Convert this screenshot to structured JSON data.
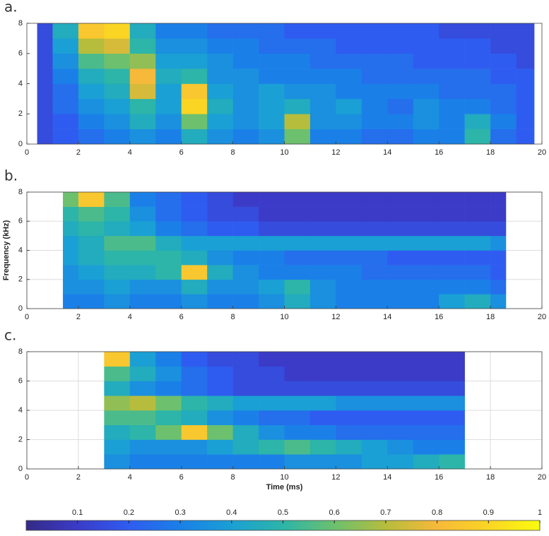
{
  "chart_data": [
    {
      "type": "heatmap",
      "label": "a.",
      "xlim": [
        0,
        20
      ],
      "ylim": [
        0,
        8
      ],
      "xticks": [
        0,
        2,
        4,
        6,
        8,
        10,
        12,
        14,
        16,
        18,
        20
      ],
      "yticks": [
        0,
        2,
        4,
        6,
        8
      ],
      "grid": false,
      "xbins": [
        0.4,
        1,
        2,
        3,
        4,
        5,
        6,
        7,
        8,
        9,
        10,
        11,
        12,
        13,
        14,
        15,
        16,
        17,
        18,
        19,
        19.7
      ],
      "ybins": [
        0,
        1,
        2,
        3,
        4,
        5,
        6,
        7,
        8
      ],
      "values": [
        [
          0.15,
          0.2,
          0.25,
          0.3,
          0.35,
          0.3,
          0.45,
          0.35,
          0.3,
          0.35,
          0.6,
          0.3,
          0.3,
          0.25,
          0.25,
          0.3,
          0.3,
          0.5,
          0.25,
          0.2
        ],
        [
          0.15,
          0.2,
          0.3,
          0.35,
          0.45,
          0.35,
          0.6,
          0.4,
          0.35,
          0.4,
          0.7,
          0.35,
          0.35,
          0.3,
          0.3,
          0.35,
          0.3,
          0.45,
          0.3,
          0.2
        ],
        [
          0.15,
          0.25,
          0.35,
          0.4,
          0.5,
          0.4,
          0.9,
          0.45,
          0.35,
          0.4,
          0.45,
          0.35,
          0.4,
          0.3,
          0.25,
          0.35,
          0.3,
          0.3,
          0.25,
          0.2
        ],
        [
          0.15,
          0.25,
          0.4,
          0.45,
          0.75,
          0.4,
          0.85,
          0.4,
          0.35,
          0.4,
          0.35,
          0.35,
          0.3,
          0.3,
          0.3,
          0.3,
          0.25,
          0.25,
          0.25,
          0.2
        ],
        [
          0.15,
          0.3,
          0.45,
          0.5,
          0.8,
          0.45,
          0.5,
          0.35,
          0.35,
          0.3,
          0.3,
          0.3,
          0.3,
          0.25,
          0.25,
          0.25,
          0.25,
          0.25,
          0.2,
          0.2
        ],
        [
          0.15,
          0.35,
          0.55,
          0.6,
          0.65,
          0.4,
          0.4,
          0.35,
          0.3,
          0.3,
          0.3,
          0.25,
          0.25,
          0.25,
          0.25,
          0.2,
          0.2,
          0.2,
          0.2,
          0.15
        ],
        [
          0.15,
          0.4,
          0.7,
          0.75,
          0.5,
          0.35,
          0.35,
          0.3,
          0.3,
          0.25,
          0.25,
          0.25,
          0.2,
          0.2,
          0.2,
          0.2,
          0.2,
          0.2,
          0.15,
          0.15
        ],
        [
          0.15,
          0.45,
          0.85,
          0.9,
          0.45,
          0.3,
          0.3,
          0.25,
          0.25,
          0.25,
          0.2,
          0.2,
          0.2,
          0.2,
          0.2,
          0.2,
          0.15,
          0.15,
          0.15,
          0.15
        ]
      ]
    },
    {
      "type": "heatmap",
      "label": "b.",
      "ylabel": "Frequency (kHz)",
      "xlim": [
        0,
        20
      ],
      "ylim": [
        0,
        8
      ],
      "xticks": [
        0,
        2,
        4,
        6,
        8,
        10,
        12,
        14,
        16,
        18,
        20
      ],
      "yticks": [
        0,
        2,
        4,
        6,
        8
      ],
      "grid": true,
      "xbins": [
        1.4,
        2,
        3,
        4,
        5,
        6,
        7,
        8,
        9,
        10,
        11,
        12,
        13,
        14,
        15,
        16,
        17,
        18,
        18.6
      ],
      "ybins": [
        0,
        1,
        2,
        3,
        4,
        5,
        6,
        7,
        8
      ],
      "values": [
        [
          0.3,
          0.3,
          0.35,
          0.3,
          0.3,
          0.35,
          0.3,
          0.3,
          0.35,
          0.45,
          0.35,
          0.3,
          0.3,
          0.3,
          0.3,
          0.4,
          0.45,
          0.35
        ],
        [
          0.35,
          0.35,
          0.4,
          0.35,
          0.35,
          0.45,
          0.35,
          0.35,
          0.4,
          0.5,
          0.35,
          0.3,
          0.3,
          0.3,
          0.3,
          0.3,
          0.3,
          0.25
        ],
        [
          0.35,
          0.4,
          0.45,
          0.45,
          0.5,
          0.85,
          0.45,
          0.35,
          0.3,
          0.3,
          0.3,
          0.3,
          0.25,
          0.25,
          0.25,
          0.25,
          0.25,
          0.2
        ],
        [
          0.4,
          0.45,
          0.5,
          0.5,
          0.5,
          0.45,
          0.35,
          0.3,
          0.3,
          0.25,
          0.25,
          0.25,
          0.25,
          0.2,
          0.2,
          0.2,
          0.2,
          0.2
        ],
        [
          0.4,
          0.45,
          0.55,
          0.55,
          0.45,
          0.4,
          0.4,
          0.4,
          0.4,
          0.4,
          0.4,
          0.4,
          0.4,
          0.4,
          0.4,
          0.4,
          0.4,
          0.35
        ],
        [
          0.45,
          0.5,
          0.45,
          0.4,
          0.3,
          0.25,
          0.2,
          0.2,
          0.15,
          0.15,
          0.15,
          0.15,
          0.15,
          0.15,
          0.15,
          0.15,
          0.15,
          0.15
        ],
        [
          0.5,
          0.55,
          0.5,
          0.35,
          0.25,
          0.2,
          0.15,
          0.15,
          0.1,
          0.1,
          0.1,
          0.1,
          0.1,
          0.1,
          0.1,
          0.1,
          0.1,
          0.1
        ],
        [
          0.6,
          0.85,
          0.55,
          0.3,
          0.25,
          0.2,
          0.15,
          0.1,
          0.1,
          0.1,
          0.1,
          0.1,
          0.1,
          0.1,
          0.1,
          0.1,
          0.1,
          0.1
        ]
      ]
    },
    {
      "type": "heatmap",
      "label": "c.",
      "xlabel": "Time (ms)",
      "xlim": [
        0,
        20
      ],
      "ylim": [
        0,
        8
      ],
      "xticks": [
        0,
        2,
        4,
        6,
        8,
        10,
        12,
        14,
        16,
        18,
        20
      ],
      "yticks": [
        0,
        2,
        4,
        6,
        8
      ],
      "grid": true,
      "xbins": [
        3,
        4,
        5,
        6,
        7,
        8,
        9,
        10,
        11,
        12,
        13,
        14,
        15,
        16,
        17
      ],
      "ybins": [
        0,
        1,
        2,
        3,
        4,
        5,
        6,
        7,
        8
      ],
      "values": [
        [
          0.35,
          0.3,
          0.3,
          0.3,
          0.3,
          0.3,
          0.3,
          0.35,
          0.35,
          0.35,
          0.4,
          0.4,
          0.45,
          0.5
        ],
        [
          0.4,
          0.35,
          0.35,
          0.35,
          0.4,
          0.45,
          0.5,
          0.55,
          0.5,
          0.45,
          0.4,
          0.35,
          0.3,
          0.3
        ],
        [
          0.45,
          0.5,
          0.6,
          0.85,
          0.6,
          0.45,
          0.35,
          0.3,
          0.3,
          0.25,
          0.25,
          0.25,
          0.25,
          0.25
        ],
        [
          0.55,
          0.55,
          0.5,
          0.45,
          0.35,
          0.3,
          0.25,
          0.25,
          0.2,
          0.2,
          0.2,
          0.2,
          0.2,
          0.2
        ],
        [
          0.65,
          0.7,
          0.6,
          0.5,
          0.45,
          0.4,
          0.4,
          0.4,
          0.4,
          0.35,
          0.35,
          0.35,
          0.35,
          0.35
        ],
        [
          0.45,
          0.35,
          0.3,
          0.25,
          0.2,
          0.15,
          0.15,
          0.15,
          0.15,
          0.15,
          0.15,
          0.15,
          0.15,
          0.15
        ],
        [
          0.55,
          0.45,
          0.35,
          0.25,
          0.2,
          0.15,
          0.15,
          0.1,
          0.1,
          0.1,
          0.1,
          0.1,
          0.1,
          0.1
        ],
        [
          0.85,
          0.4,
          0.3,
          0.2,
          0.15,
          0.15,
          0.1,
          0.1,
          0.1,
          0.1,
          0.1,
          0.1,
          0.1,
          0.1
        ]
      ]
    }
  ],
  "colorbar": {
    "lim": [
      0,
      1
    ],
    "ticks": [
      0.1,
      0.2,
      0.3,
      0.4,
      0.5,
      0.6,
      0.7,
      0.8,
      0.9,
      1
    ],
    "colors": [
      "#352a87",
      "#3b3bc8",
      "#2f5cf0",
      "#1a80e8",
      "#1aa0d4",
      "#2cb5a8",
      "#6cc06e",
      "#b6bd3c",
      "#f6b93a",
      "#fbd524",
      "#f9fb0e"
    ]
  }
}
